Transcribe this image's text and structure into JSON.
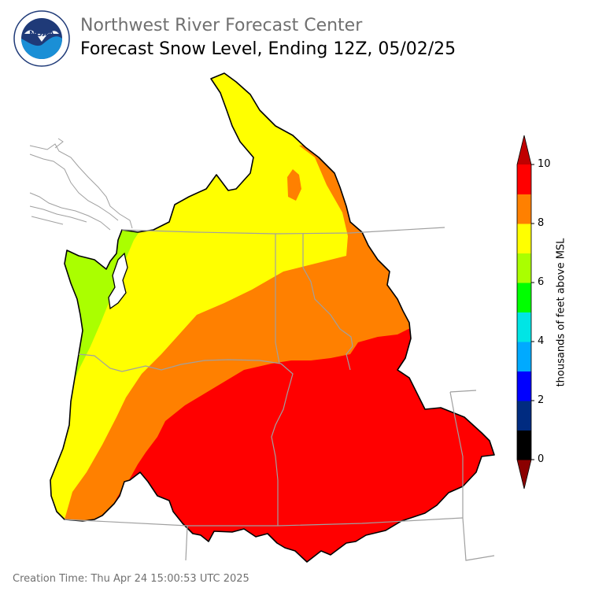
{
  "header": {
    "organization": "Northwest River Forecast Center",
    "title": "Forecast Snow Level, Ending 12Z, 05/02/25"
  },
  "logo": {
    "text": "NOAA",
    "ring_text": "NATIONAL OCEANIC AND ATMOSPHERIC ADMINISTRATION · U.S. DEPARTMENT OF COMMERCE"
  },
  "colorbar": {
    "label": "thousands of feet above MSL",
    "ticks": [
      "0",
      "2",
      "4",
      "6",
      "8",
      "10"
    ],
    "levels": [
      {
        "range": "<0",
        "color": "#8b0000"
      },
      {
        "range": "0-1",
        "color": "#000000"
      },
      {
        "range": "1-2",
        "color": "#002b80"
      },
      {
        "range": "2-3",
        "color": "#0000ff"
      },
      {
        "range": "3-4",
        "color": "#00aaff"
      },
      {
        "range": "4-5",
        "color": "#00e5e5"
      },
      {
        "range": "5-6",
        "color": "#00ff00"
      },
      {
        "range": "6-7",
        "color": "#aaff00"
      },
      {
        "range": "7-8",
        "color": "#ffff00"
      },
      {
        "range": "8-9",
        "color": "#ff8000"
      },
      {
        "range": "9-10",
        "color": "#ff0000"
      },
      {
        "range": ">10",
        "color": "#c00000"
      }
    ]
  },
  "map_colors": {
    "green_zone": "#aaff00",
    "yellow_zone": "#ffff00",
    "orange_zone": "#ff8000",
    "red_zone": "#ff0000",
    "boundaries": "#a0a0a0",
    "basin_outline": "#000000"
  },
  "footer": {
    "creation_time": "Creation Time: Thu Apr 24 15:00:53 UTC 2025"
  }
}
